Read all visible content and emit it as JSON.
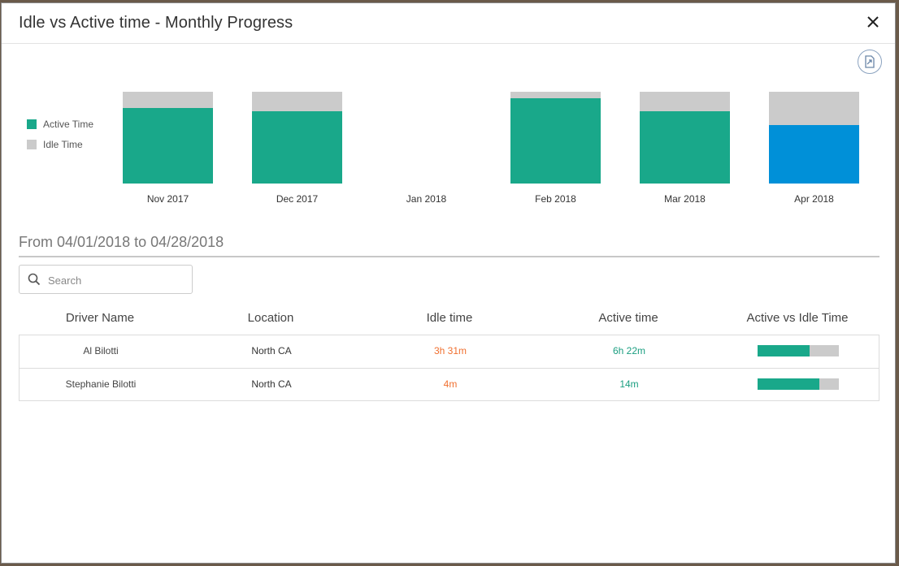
{
  "modal": {
    "title": "Idle vs Active time - Monthly Progress"
  },
  "legend": [
    {
      "label": "Active Time",
      "color": "#19a88a"
    },
    {
      "label": "Idle Time",
      "color": "#cbcbcb"
    }
  ],
  "chart_data": {
    "type": "bar",
    "stacked": true,
    "categories": [
      "Nov 2017",
      "Dec 2017",
      "Jan 2018",
      "Feb 2018",
      "Mar 2018",
      "Apr 2018"
    ],
    "series": [
      {
        "name": "Active Time",
        "values": [
          82,
          79,
          0,
          93,
          79,
          64
        ],
        "color": "#19a88a"
      },
      {
        "name": "Idle Time",
        "values": [
          18,
          21,
          0,
          7,
          21,
          36
        ],
        "color": "#cbcbcb"
      }
    ],
    "highlight": {
      "category": "Apr 2018",
      "color": "#0090d8"
    },
    "ylim": [
      0,
      100
    ]
  },
  "range": {
    "title": "From 04/01/2018 to 04/28/2018"
  },
  "search": {
    "placeholder": "Search",
    "value": ""
  },
  "table": {
    "headers": [
      "Driver Name",
      "Location",
      "Idle time",
      "Active time",
      "Active vs Idle Time"
    ],
    "rows": [
      {
        "name": "Al Bilotti",
        "location": "North CA",
        "idle": "3h 31m",
        "active": "6h 22m",
        "active_fraction": 0.64
      },
      {
        "name": "Stephanie Bilotti",
        "location": "North CA",
        "idle": "4m",
        "active": "14m",
        "active_fraction": 0.76
      }
    ]
  },
  "icons": {
    "close": "close-icon",
    "export": "export-icon",
    "search": "search-icon"
  }
}
